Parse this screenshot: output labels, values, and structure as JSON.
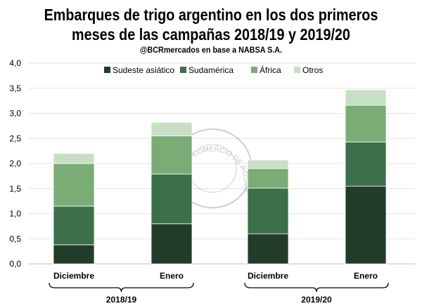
{
  "chart_data": {
    "type": "bar",
    "stacked": true,
    "title_line1": "Embarques de trigo argentino en los dos primeros",
    "title_line2": "meses de las campañas 2018/19 y 2019/20",
    "subtitle": "@BCRmercados en base a NABSA S.A.",
    "categories": [
      "Diciembre",
      "Enero",
      "Diciembre",
      "Enero"
    ],
    "groups": [
      "2018/19",
      "2019/20"
    ],
    "series": [
      {
        "name": "Sudeste asiático",
        "color": "#213d2a",
        "values": [
          0.38,
          0.8,
          0.6,
          1.55
        ]
      },
      {
        "name": "Sudamérica",
        "color": "#3b7049",
        "values": [
          0.77,
          0.99,
          0.91,
          0.88
        ]
      },
      {
        "name": "África",
        "color": "#7aac76",
        "values": [
          0.85,
          0.76,
          0.39,
          0.73
        ]
      },
      {
        "name": "Otros",
        "color": "#c7e0c4",
        "values": [
          0.2,
          0.27,
          0.17,
          0.31
        ]
      }
    ],
    "ylim": [
      0,
      4.0
    ],
    "yticks": [
      "0,0",
      "0,5",
      "1,0",
      "1,5",
      "2,0",
      "2,5",
      "3,0",
      "3,5",
      "4,0"
    ],
    "grid": true,
    "legend": "top",
    "watermark": "BOLSA DE COMERCIO DE ROSARIO"
  }
}
